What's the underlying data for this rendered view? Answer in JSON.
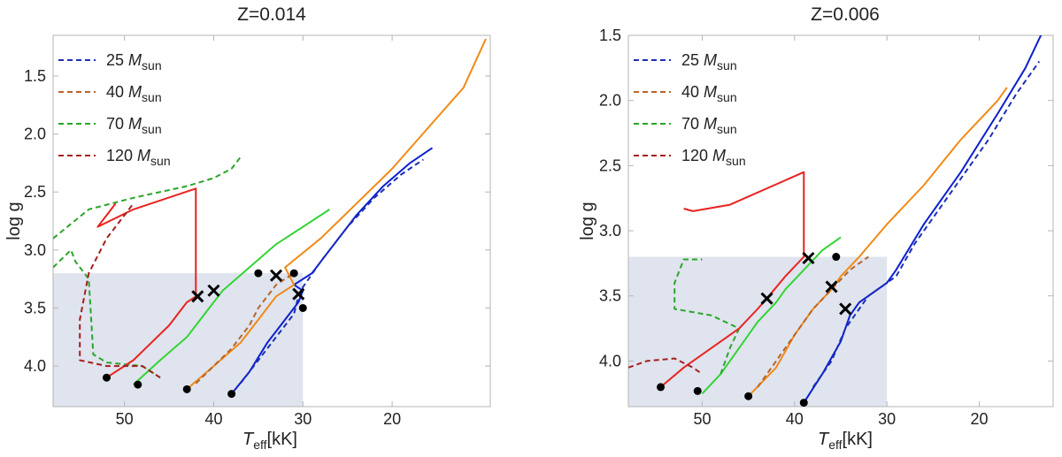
{
  "chart_data": [
    {
      "type": "line",
      "title": "Z=0.014",
      "xlabel": "T_eff[kK]",
      "xlabel_main": "T",
      "xlabel_sub": "eff",
      "xlabel_rest": "[kK]",
      "ylabel": "log g",
      "xlim": [
        58,
        9
      ],
      "ylim": [
        4.35,
        1.15
      ],
      "xticks": [
        50,
        40,
        30,
        20
      ],
      "xticklabels": [
        "50",
        "40",
        "30",
        "20"
      ],
      "yticks": [
        1.5,
        2.0,
        2.5,
        3.0,
        3.5,
        4.0
      ],
      "yticklabels": [
        "1.5",
        "2.0",
        "2.5",
        "3.0",
        "3.5",
        "4.0"
      ],
      "shaded_region": {
        "x": [
          58,
          30
        ],
        "y": [
          3.2,
          4.35
        ]
      },
      "legend": [
        {
          "label": "25 M",
          "sub": "sun",
          "color": "#1f2fb5"
        },
        {
          "label": "40 M",
          "sub": "sun",
          "color": "#b8642a"
        },
        {
          "label": "70 M",
          "sub": "sun",
          "color": "#2aa52a"
        },
        {
          "label": "120 M",
          "sub": "sun",
          "color": "#a51f1f"
        }
      ],
      "series": [
        {
          "name": "25 M_sun rotating",
          "style": "solid",
          "color": "#0b1fd0",
          "points": [
            [
              38,
              4.24
            ],
            [
              36,
              4.05
            ],
            [
              34,
              3.8
            ],
            [
              32,
              3.6
            ],
            [
              30.5,
              3.45
            ],
            [
              30,
              3.35
            ],
            [
              31,
              3.3
            ],
            [
              29,
              3.2
            ],
            [
              27,
              3.0
            ],
            [
              24,
              2.7
            ],
            [
              21,
              2.45
            ],
            [
              18,
              2.25
            ],
            [
              15.5,
              2.12
            ]
          ]
        },
        {
          "name": "25 M_sun non-rotating",
          "style": "dashed",
          "color": "#1f2fb5",
          "points": [
            [
              37,
              4.15
            ],
            [
              35,
              3.95
            ],
            [
              33,
              3.75
            ],
            [
              31,
              3.55
            ],
            [
              30.5,
              3.4
            ],
            [
              30,
              3.32
            ],
            [
              28,
              3.1
            ],
            [
              25,
              2.8
            ],
            [
              22,
              2.55
            ],
            [
              19,
              2.35
            ],
            [
              16.5,
              2.22
            ]
          ]
        },
        {
          "name": "40 M_sun rotating",
          "style": "solid",
          "color": "#f08a16",
          "points": [
            [
              43,
              4.2
            ],
            [
              40,
              4.0
            ],
            [
              37,
              3.8
            ],
            [
              35,
              3.6
            ],
            [
              33,
              3.4
            ],
            [
              31,
              3.3
            ],
            [
              32,
              3.15
            ],
            [
              28,
              2.9
            ],
            [
              24,
              2.6
            ],
            [
              20,
              2.3
            ],
            [
              16,
              1.95
            ],
            [
              12,
              1.6
            ],
            [
              9.5,
              1.18
            ]
          ]
        },
        {
          "name": "40 M_sun non-rotating",
          "style": "dashed",
          "color": "#b8642a",
          "points": [
            [
              42,
              4.15
            ],
            [
              40,
              4.0
            ],
            [
              38,
              3.85
            ],
            [
              36,
              3.65
            ],
            [
              35,
              3.5
            ],
            [
              34,
              3.4
            ],
            [
              33,
              3.3
            ],
            [
              31,
              3.2
            ]
          ]
        },
        {
          "name": "70 M_sun rotating",
          "style": "solid",
          "color": "#33d433",
          "points": [
            [
              49,
              4.16
            ],
            [
              46,
              3.95
            ],
            [
              43,
              3.75
            ],
            [
              41,
              3.55
            ],
            [
              39,
              3.35
            ],
            [
              36,
              3.15
            ],
            [
              33,
              2.95
            ],
            [
              30,
              2.8
            ],
            [
              27,
              2.65
            ]
          ]
        },
        {
          "name": "70 M_sun non-rotating",
          "style": "dashed",
          "color": "#2aa52a",
          "points": [
            [
              58,
              3.15
            ],
            [
              56,
              3.0
            ],
            [
              55.5,
              3.1
            ],
            [
              54,
              3.25
            ],
            [
              53.5,
              3.9
            ],
            [
              52,
              3.97
            ],
            [
              48,
              4.0
            ],
            [
              47,
              4.05
            ],
            [
              46,
              4.1
            ]
          ]
        },
        {
          "name": "70 M_sun extended",
          "style": "dashed",
          "color": "#2aa52a",
          "points": [
            [
              58,
              2.9
            ],
            [
              54,
              2.65
            ],
            [
              49,
              2.55
            ],
            [
              43,
              2.45
            ],
            [
              40,
              2.38
            ],
            [
              38,
              2.3
            ],
            [
              37,
              2.2
            ]
          ]
        },
        {
          "name": "120 M_sun rotating",
          "style": "solid",
          "color": "#e8231f",
          "points": [
            [
              52,
              4.1
            ],
            [
              49,
              3.95
            ],
            [
              47,
              3.8
            ],
            [
              45,
              3.65
            ],
            [
              44.5,
              3.6
            ],
            [
              44,
              3.55
            ],
            [
              43,
              3.45
            ],
            [
              42,
              3.4
            ],
            [
              42,
              2.47
            ],
            [
              49,
              2.65
            ],
            [
              53,
              2.8
            ],
            [
              51,
              2.6
            ]
          ]
        },
        {
          "name": "120 M_sun non-rotating",
          "style": "dashed",
          "color": "#a51f1f",
          "points": [
            [
              46,
              4.1
            ],
            [
              48,
              4.0
            ],
            [
              52,
              4.0
            ],
            [
              55,
              3.95
            ],
            [
              55,
              3.6
            ],
            [
              54,
              3.2
            ],
            [
              52,
              2.9
            ],
            [
              49,
              2.6
            ]
          ]
        }
      ],
      "dots": [
        [
          52,
          4.1
        ],
        [
          48.5,
          4.16
        ],
        [
          43,
          4.2
        ],
        [
          38,
          4.24
        ],
        [
          35,
          3.2
        ],
        [
          31,
          3.2
        ],
        [
          30,
          3.5
        ]
      ],
      "crosses": [
        [
          41.8,
          3.4
        ],
        [
          40,
          3.35
        ],
        [
          33,
          3.22
        ],
        [
          30.5,
          3.38
        ]
      ]
    },
    {
      "type": "line",
      "title": "Z=0.006",
      "xlabel": "T_eff[kK]",
      "xlabel_main": "T",
      "xlabel_sub": "eff",
      "xlabel_rest": "[kK]",
      "ylabel": "log g",
      "xlim": [
        58,
        12
      ],
      "ylim": [
        4.35,
        1.5
      ],
      "xticks": [
        50,
        40,
        30,
        20
      ],
      "xticklabels": [
        "50",
        "40",
        "30",
        "20"
      ],
      "yticks": [
        1.5,
        2.0,
        2.5,
        3.0,
        3.5,
        4.0
      ],
      "yticklabels": [
        "1.5",
        "2.0",
        "2.5",
        "3.0",
        "3.5",
        "4.0"
      ],
      "shaded_region": {
        "x": [
          58,
          30
        ],
        "y": [
          3.2,
          4.35
        ]
      },
      "legend": [
        {
          "label": "25 M",
          "sub": "sun",
          "color": "#1f2fb5"
        },
        {
          "label": "40 M",
          "sub": "sun",
          "color": "#b8642a"
        },
        {
          "label": "70 M",
          "sub": "sun",
          "color": "#2aa52a"
        },
        {
          "label": "120 M",
          "sub": "sun",
          "color": "#a51f1f"
        }
      ],
      "series": [
        {
          "name": "25 M_sun rotating",
          "style": "solid",
          "color": "#0b1fd0",
          "points": [
            [
              39,
              4.32
            ],
            [
              37,
              4.1
            ],
            [
              35,
              3.85
            ],
            [
              34,
              3.65
            ],
            [
              33,
              3.55
            ],
            [
              30,
              3.4
            ],
            [
              29,
              3.3
            ],
            [
              26,
              2.95
            ],
            [
              22,
              2.55
            ],
            [
              18,
              2.1
            ],
            [
              15,
              1.75
            ],
            [
              13,
              1.45
            ]
          ]
        },
        {
          "name": "25 M_sun non-rotating",
          "style": "dashed",
          "color": "#1f2fb5",
          "points": [
            [
              38,
              4.2
            ],
            [
              36,
              4.0
            ],
            [
              34.5,
              3.75
            ],
            [
              33,
              3.6
            ],
            [
              32,
              3.5
            ],
            [
              29,
              3.35
            ],
            [
              27,
              3.1
            ],
            [
              23,
              2.7
            ],
            [
              19,
              2.3
            ],
            [
              16,
              1.95
            ],
            [
              13.5,
              1.7
            ]
          ]
        },
        {
          "name": "40 M_sun rotating",
          "style": "solid",
          "color": "#f08a16",
          "points": [
            [
              45,
              4.27
            ],
            [
              42,
              4.05
            ],
            [
              40,
              3.8
            ],
            [
              38,
              3.6
            ],
            [
              36,
              3.45
            ],
            [
              35,
              3.35
            ],
            [
              33,
              3.2
            ],
            [
              30,
              2.95
            ],
            [
              26,
              2.65
            ],
            [
              22,
              2.3
            ],
            [
              18,
              2.0
            ],
            [
              17,
              1.9
            ]
          ]
        },
        {
          "name": "40 M_sun non-rotating",
          "style": "dashed",
          "color": "#b8642a",
          "points": [
            [
              44,
              4.2
            ],
            [
              42,
              4.0
            ],
            [
              40,
              3.8
            ],
            [
              38,
              3.6
            ],
            [
              36,
              3.45
            ],
            [
              34,
              3.3
            ],
            [
              32,
              3.2
            ]
          ]
        },
        {
          "name": "70 M_sun rotating",
          "style": "solid",
          "color": "#33d433",
          "points": [
            [
              50,
              4.25
            ],
            [
              48,
              4.1
            ],
            [
              46,
              3.9
            ],
            [
              44,
              3.7
            ],
            [
              42,
              3.55
            ],
            [
              41,
              3.45
            ],
            [
              39,
              3.3
            ],
            [
              37,
              3.15
            ],
            [
              35,
              3.05
            ]
          ]
        },
        {
          "name": "70 M_sun non-rotating",
          "style": "dashed",
          "color": "#2aa52a",
          "points": [
            [
              48,
              4.1
            ],
            [
              47,
              3.9
            ],
            [
              46,
              3.75
            ],
            [
              49,
              3.65
            ],
            [
              53,
              3.6
            ],
            [
              53,
              3.4
            ],
            [
              52,
              3.22
            ],
            [
              50,
              3.22
            ]
          ]
        },
        {
          "name": "120 M_sun rotating",
          "style": "solid",
          "color": "#e8231f",
          "points": [
            [
              54.5,
              4.2
            ],
            [
              52,
              4.05
            ],
            [
              49,
              3.9
            ],
            [
              46,
              3.75
            ],
            [
              44,
              3.6
            ],
            [
              43,
              3.52
            ],
            [
              41,
              3.35
            ],
            [
              39,
              3.2
            ],
            [
              39,
              2.55
            ],
            [
              47,
              2.8
            ],
            [
              51,
              2.85
            ],
            [
              52,
              2.83
            ]
          ]
        },
        {
          "name": "120 M_sun non-rotating",
          "style": "dashed",
          "color": "#a51f1f",
          "points": [
            [
              58,
              4.05
            ],
            [
              56,
              4.0
            ],
            [
              53,
              3.98
            ],
            [
              51,
              4.05
            ],
            [
              50,
              4.1
            ]
          ]
        }
      ],
      "dots": [
        [
          54.5,
          4.2
        ],
        [
          50.5,
          4.23
        ],
        [
          45,
          4.27
        ],
        [
          39,
          4.32
        ],
        [
          35.5,
          3.2
        ]
      ],
      "crosses": [
        [
          38.5,
          3.21
        ],
        [
          43,
          3.52
        ],
        [
          36,
          3.43
        ],
        [
          34.5,
          3.6
        ]
      ]
    }
  ]
}
